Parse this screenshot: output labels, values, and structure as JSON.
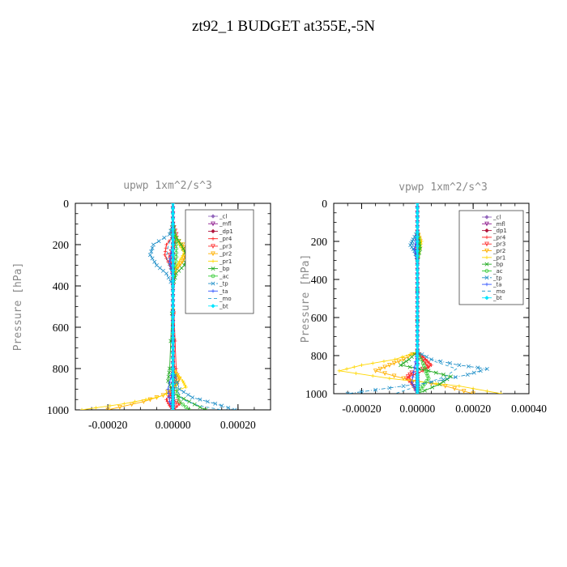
{
  "page": {
    "title": "zt92_1  BUDGET at355E,-5N"
  },
  "series_style": [
    {
      "name": "_cl",
      "color": "#9467bd",
      "marker": "diamond",
      "dash": ""
    },
    {
      "name": "_mfl",
      "color": "#8e1b8e",
      "marker": "tri",
      "dash": ""
    },
    {
      "name": "_dp1",
      "color": "#b0143c",
      "marker": "diamond",
      "dash": ""
    },
    {
      "name": "_pr4",
      "color": "#ff2020",
      "marker": "plus",
      "dash": ""
    },
    {
      "name": "_pr3",
      "color": "#ff3030",
      "marker": "tri",
      "dash": ""
    },
    {
      "name": "_pr2",
      "color": "#ffb000",
      "marker": "tri",
      "dash": ""
    },
    {
      "name": "_pr1",
      "color": "#ffd700",
      "marker": "plus",
      "dash": ""
    },
    {
      "name": "_bp",
      "color": "#22aa22",
      "marker": "x",
      "dash": ""
    },
    {
      "name": "_ac",
      "color": "#33cc33",
      "marker": "circle",
      "dash": ""
    },
    {
      "name": "_tp",
      "color": "#1f8fc8",
      "marker": "x",
      "dash": "5,2,1,2"
    },
    {
      "name": "_ta",
      "color": "#3355ff",
      "marker": "plus",
      "dash": ""
    },
    {
      "name": "_mo",
      "color": "#2ca0d0",
      "marker": "none",
      "dash": "4,3"
    },
    {
      "name": "_bt",
      "color": "#00e5ff",
      "marker": "diamond",
      "dash": ""
    }
  ],
  "chart_data": [
    {
      "type": "line",
      "title": "upwp   1xm^2/s^3",
      "ylabel": "Pressure [hPa]",
      "xlabel": "",
      "xlim": [
        -0.0003,
        0.0003
      ],
      "ylim": [
        0,
        1000
      ],
      "y_inverted": true,
      "xticks": [
        "-0.00020",
        "0.00000",
        "0.00020"
      ],
      "xtick_values": [
        -0.0002,
        0,
        0.0002
      ],
      "yticks": [
        0,
        200,
        400,
        600,
        800,
        1000
      ],
      "legend_position": "upper-right",
      "series": [
        {
          "name": "_cl",
          "x": [
            0,
            0,
            0,
            0,
            0,
            0,
            0,
            0,
            0,
            0,
            0,
            0
          ],
          "y": [
            0,
            100,
            200,
            300,
            400,
            500,
            600,
            700,
            800,
            900,
            950,
            1000
          ]
        },
        {
          "name": "_mfl",
          "x": [
            0,
            0,
            0,
            0,
            0,
            0,
            0,
            0,
            0,
            0,
            0,
            0
          ],
          "y": [
            0,
            100,
            200,
            300,
            400,
            500,
            600,
            700,
            800,
            900,
            950,
            1000
          ]
        },
        {
          "name": "_dp1",
          "x": [
            0,
            0,
            0,
            0,
            0,
            0,
            0,
            0,
            0,
            0,
            0,
            0
          ],
          "y": [
            0,
            100,
            200,
            300,
            400,
            500,
            600,
            700,
            800,
            900,
            950,
            1000
          ]
        },
        {
          "name": "_pr4",
          "x": [
            0,
            5e-06,
            -2e-05,
            -2.5e-05,
            -1e-05,
            0,
            0,
            1e-05,
            1e-05,
            0,
            -2e-05,
            -1e-05,
            0
          ],
          "y": [
            100,
            150,
            200,
            250,
            300,
            350,
            400,
            800,
            850,
            900,
            950,
            980,
            1000
          ]
        },
        {
          "name": "_pr3",
          "x": [
            0,
            1e-05,
            5e-06,
            -1e-05,
            -5e-06,
            0,
            0,
            5e-06,
            0,
            -1e-05,
            2e-05,
            0
          ],
          "y": [
            100,
            150,
            200,
            250,
            300,
            350,
            400,
            800,
            880,
            940,
            970,
            1000
          ]
        },
        {
          "name": "_pr2",
          "x": [
            0,
            -5e-06,
            3e-05,
            4e-05,
            3e-05,
            1e-05,
            0,
            0,
            2e-05,
            1e-05,
            -3e-05,
            -9e-05,
            -0.0002
          ],
          "y": [
            100,
            150,
            200,
            240,
            280,
            320,
            380,
            800,
            850,
            880,
            930,
            960,
            1000
          ]
        },
        {
          "name": "_pr1",
          "x": [
            0,
            5e-06,
            2e-05,
            3.5e-05,
            2e-05,
            5e-06,
            0,
            0,
            3e-05,
            4e-05,
            -5e-05,
            -0.00015,
            -0.00028
          ],
          "y": [
            100,
            150,
            200,
            240,
            280,
            320,
            380,
            800,
            860,
            890,
            940,
            970,
            1000
          ]
        },
        {
          "name": "_bp",
          "x": [
            0,
            5e-06,
            2.5e-05,
            4.5e-05,
            3.5e-05,
            1e-05,
            0,
            -1e-05,
            -1.5e-05,
            0,
            5e-05,
            0.0001
          ],
          "y": [
            100,
            150,
            200,
            260,
            300,
            340,
            400,
            800,
            860,
            920,
            960,
            1000
          ]
        },
        {
          "name": "_ac",
          "x": [
            0,
            5e-06,
            1e-05,
            1e-05,
            5e-06,
            0,
            0,
            1e-05,
            2e-05,
            5e-05
          ],
          "y": [
            100,
            150,
            200,
            260,
            320,
            380,
            800,
            900,
            960,
            1000
          ]
        },
        {
          "name": "_tp",
          "x": [
            0,
            -1e-05,
            -6e-05,
            -7e-05,
            -5e-05,
            -2e-05,
            0,
            0,
            2e-05,
            6e-05,
            0.00013,
            0.00019
          ],
          "y": [
            100,
            150,
            200,
            250,
            300,
            340,
            400,
            800,
            900,
            940,
            970,
            1000
          ]
        },
        {
          "name": "_ta",
          "x": [
            0,
            0,
            -5e-06,
            -1e-05,
            -5e-06,
            0,
            0,
            -1.5e-05,
            -1e-05,
            0
          ],
          "y": [
            100,
            200,
            240,
            280,
            320,
            380,
            800,
            900,
            960,
            1000
          ]
        },
        {
          "name": "_mo",
          "x": [
            0,
            -5e-06,
            -1.5e-05,
            -2e-05,
            -1e-05,
            0,
            0,
            1e-05,
            3e-05,
            8e-05,
            0.00015
          ],
          "y": [
            100,
            160,
            210,
            260,
            310,
            360,
            800,
            900,
            950,
            980,
            1000
          ]
        },
        {
          "name": "_bt",
          "x": [
            0,
            0,
            0,
            0,
            0,
            0,
            0,
            0,
            0,
            0,
            0,
            0
          ],
          "y": [
            0,
            100,
            200,
            300,
            400,
            500,
            600,
            700,
            800,
            900,
            950,
            1000
          ]
        }
      ]
    },
    {
      "type": "line",
      "title": "vpwp   1xm^2/s^3",
      "ylabel": "Pressure [hPa]",
      "xlabel": "",
      "xlim": [
        -0.0003,
        0.0004
      ],
      "ylim": [
        0,
        1000
      ],
      "y_inverted": true,
      "xticks": [
        "-0.00020",
        "0.00000",
        "0.00020",
        "0.00040"
      ],
      "xtick_values": [
        -0.0002,
        0,
        0.0002,
        0.0004
      ],
      "yticks": [
        0,
        200,
        400,
        600,
        800,
        1000
      ],
      "legend_position": "upper-right",
      "series": [
        {
          "name": "_cl",
          "x": [
            0,
            0,
            0,
            0,
            0,
            0,
            0,
            0,
            0,
            0,
            0,
            0
          ],
          "y": [
            0,
            100,
            200,
            300,
            400,
            500,
            600,
            700,
            800,
            900,
            950,
            1000
          ]
        },
        {
          "name": "_mfl",
          "x": [
            0,
            0,
            0,
            0,
            0,
            0,
            0,
            0,
            0,
            0,
            0,
            0
          ],
          "y": [
            0,
            100,
            200,
            300,
            400,
            500,
            600,
            700,
            800,
            900,
            950,
            1000
          ]
        },
        {
          "name": "_dp1",
          "x": [
            0,
            0,
            0,
            0,
            0,
            0,
            0,
            0,
            0,
            0,
            0,
            0
          ],
          "y": [
            0,
            100,
            200,
            300,
            400,
            500,
            600,
            700,
            800,
            900,
            950,
            1000
          ]
        },
        {
          "name": "_pr4",
          "x": [
            0,
            5e-06,
            -1e-05,
            0,
            0,
            3e-05,
            5e-05,
            2e-05,
            -3e-05,
            -2e-05,
            0
          ],
          "y": [
            150,
            200,
            240,
            300,
            780,
            820,
            850,
            880,
            910,
            950,
            1000
          ]
        },
        {
          "name": "_pr3",
          "x": [
            0,
            1e-05,
            5e-06,
            0,
            0,
            2e-05,
            4e-05,
            -2e-05,
            -4e-05,
            -1e-05,
            0
          ],
          "y": [
            150,
            200,
            240,
            300,
            780,
            820,
            860,
            890,
            920,
            960,
            1000
          ]
        },
        {
          "name": "_pr2",
          "x": [
            0,
            1e-05,
            5e-06,
            0,
            0,
            -5e-05,
            -0.0001,
            -0.00015,
            -5e-05,
            0.0001,
            0.0002
          ],
          "y": [
            150,
            200,
            240,
            300,
            780,
            820,
            850,
            880,
            920,
            960,
            1000
          ]
        },
        {
          "name": "_pr1",
          "x": [
            0,
            1.5e-05,
            1e-05,
            0,
            0,
            -8e-05,
            -0.0002,
            -0.00028,
            -0.0001,
            0.00015,
            0.0003
          ],
          "y": [
            150,
            200,
            240,
            300,
            780,
            820,
            850,
            880,
            920,
            960,
            1000
          ]
        },
        {
          "name": "_bp",
          "x": [
            0,
            5e-06,
            1e-05,
            0,
            0,
            -3e-05,
            -6e-05,
            4e-05,
            0.00012,
            8e-05,
            0
          ],
          "y": [
            150,
            200,
            240,
            300,
            780,
            820,
            850,
            880,
            910,
            950,
            1000
          ]
        },
        {
          "name": "_ac",
          "x": [
            0,
            5e-06,
            5e-06,
            0,
            0,
            2e-05,
            3e-05,
            4e-05,
            2e-05,
            0
          ],
          "y": [
            150,
            200,
            240,
            300,
            780,
            840,
            880,
            920,
            960,
            1000
          ]
        },
        {
          "name": "_tp",
          "x": [
            0,
            -1.5e-05,
            -2.5e-05,
            -1e-05,
            0,
            0,
            5e-05,
            0.00015,
            0.00025,
            0.00018,
            5e-05,
            -0.0001,
            -0.00025
          ],
          "y": [
            150,
            190,
            220,
            250,
            300,
            780,
            820,
            850,
            870,
            900,
            940,
            970,
            1000
          ]
        },
        {
          "name": "_ta",
          "x": [
            0,
            -5e-06,
            -1e-05,
            0,
            0,
            -1e-05,
            -2e-05,
            0
          ],
          "y": [
            150,
            200,
            240,
            300,
            780,
            860,
            940,
            1000
          ]
        },
        {
          "name": "_mo",
          "x": [
            0,
            -1e-05,
            -2e-05,
            0,
            0,
            6e-05,
            0.00014,
            0.0001,
            2e-05,
            -8e-05
          ],
          "y": [
            150,
            200,
            230,
            300,
            780,
            830,
            870,
            910,
            950,
            1000
          ]
        },
        {
          "name": "_bt",
          "x": [
            0,
            0,
            0,
            0,
            0,
            0,
            0,
            0,
            0,
            0,
            0,
            0
          ],
          "y": [
            0,
            100,
            200,
            300,
            400,
            500,
            600,
            700,
            800,
            900,
            950,
            1000
          ]
        }
      ]
    }
  ]
}
